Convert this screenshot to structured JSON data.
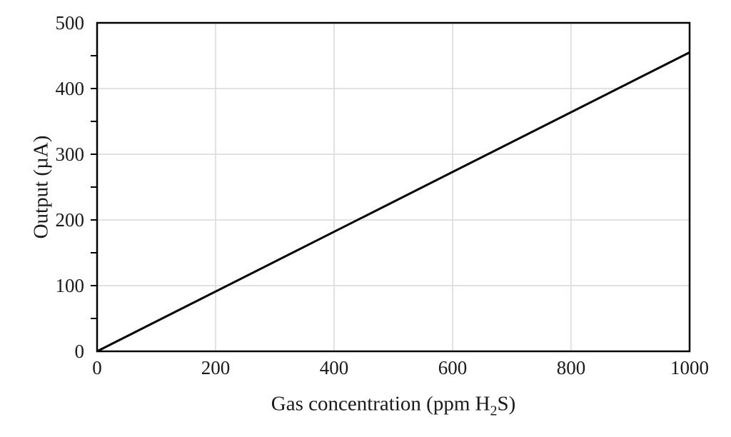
{
  "figure": {
    "background": "#ffffff",
    "text_color": "#1a1a1a",
    "axis_color": "#000000",
    "grid_color": "#d9d9d9",
    "line_color": "#000000"
  },
  "chart_data": {
    "type": "line",
    "title": "",
    "xlabel_parts": {
      "pre": "Gas concentration (ppm H",
      "sub": "2",
      "post": "S)"
    },
    "ylabel": "Output (µA)",
    "xlim": [
      0,
      1000
    ],
    "ylim": [
      0,
      500
    ],
    "xticks": [
      0,
      200,
      400,
      600,
      800,
      1000
    ],
    "yticks": [
      0,
      100,
      200,
      300,
      400,
      500
    ],
    "y_minor_step": 50,
    "grid": true,
    "legend": "none",
    "series": [
      {
        "color": "#000000",
        "x": [
          0,
          1000
        ],
        "y": [
          0,
          455
        ]
      }
    ]
  }
}
